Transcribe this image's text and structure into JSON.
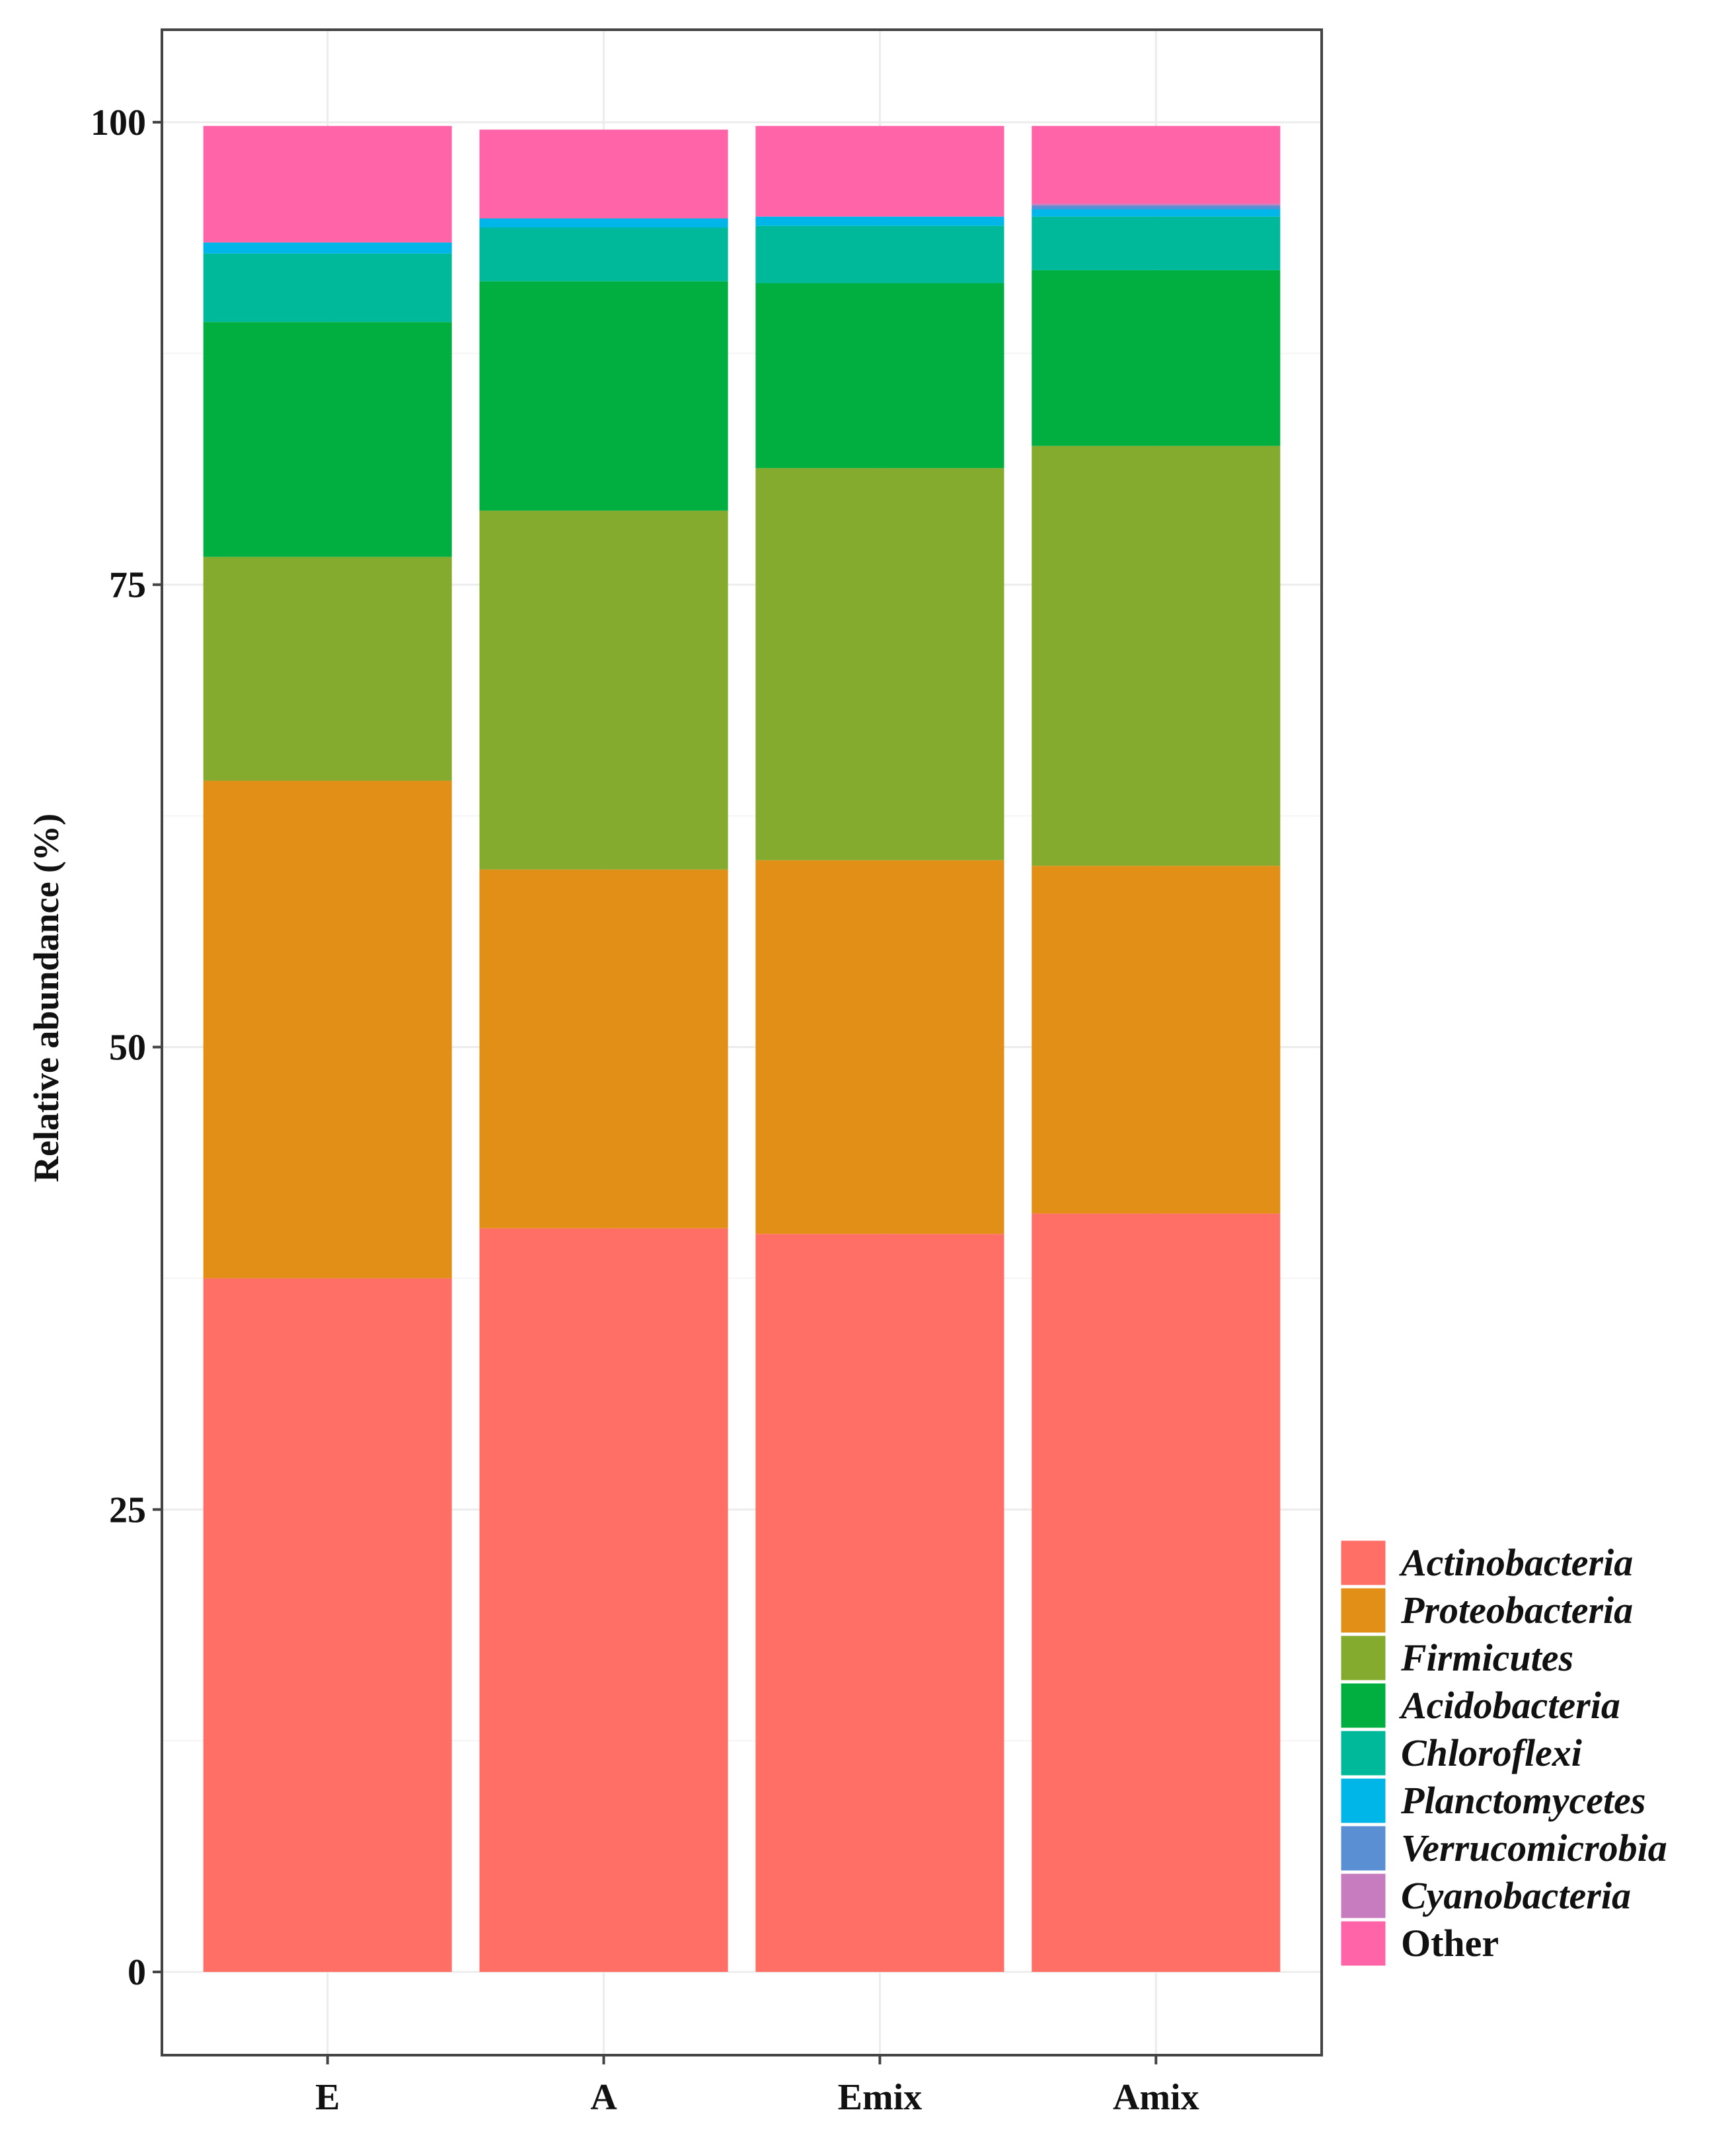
{
  "chart_data": {
    "type": "bar",
    "stacked": true,
    "categories": [
      "E",
      "A",
      "Emix",
      "Amix"
    ],
    "ylabel": "Relative abundance (%)",
    "xlabel": "",
    "ylim": [
      -4.5,
      105
    ],
    "yticks": [
      0,
      25,
      50,
      75,
      100
    ],
    "grid": true,
    "legend_position": "bottom-right",
    "series": [
      {
        "name": "Actinobacteria",
        "color": "#FF6F66",
        "italic": true,
        "values": [
          37.5,
          40.2,
          39.9,
          41.0
        ]
      },
      {
        "name": "Proteobacteria",
        "color": "#E18F17",
        "italic": true,
        "values": [
          26.9,
          19.4,
          20.2,
          18.8
        ]
      },
      {
        "name": "Firmicutes",
        "color": "#84AA2E",
        "italic": true,
        "values": [
          12.1,
          19.4,
          21.2,
          22.7
        ]
      },
      {
        "name": "Acidobacteria",
        "color": "#00AF3F",
        "italic": true,
        "values": [
          12.7,
          12.4,
          10.0,
          9.5
        ]
      },
      {
        "name": "Chloroflexi",
        "color": "#00B99A",
        "italic": true,
        "values": [
          3.7,
          2.9,
          3.1,
          2.9
        ]
      },
      {
        "name": "Planctomycetes",
        "color": "#00B5E8",
        "italic": true,
        "values": [
          0.6,
          0.5,
          0.5,
          0.4
        ]
      },
      {
        "name": "Verrucomicrobia",
        "color": "#5A8FD3",
        "italic": true,
        "values": [
          0.0,
          0.0,
          0.0,
          0.2
        ]
      },
      {
        "name": "Cyanobacteria",
        "color": "#C77CBF",
        "italic": true,
        "values": [
          0.0,
          0.0,
          0.0,
          0.1
        ]
      },
      {
        "name": "Other",
        "color": "#FF63A8",
        "italic": false,
        "values": [
          6.3,
          4.8,
          4.9,
          4.2
        ]
      }
    ]
  }
}
